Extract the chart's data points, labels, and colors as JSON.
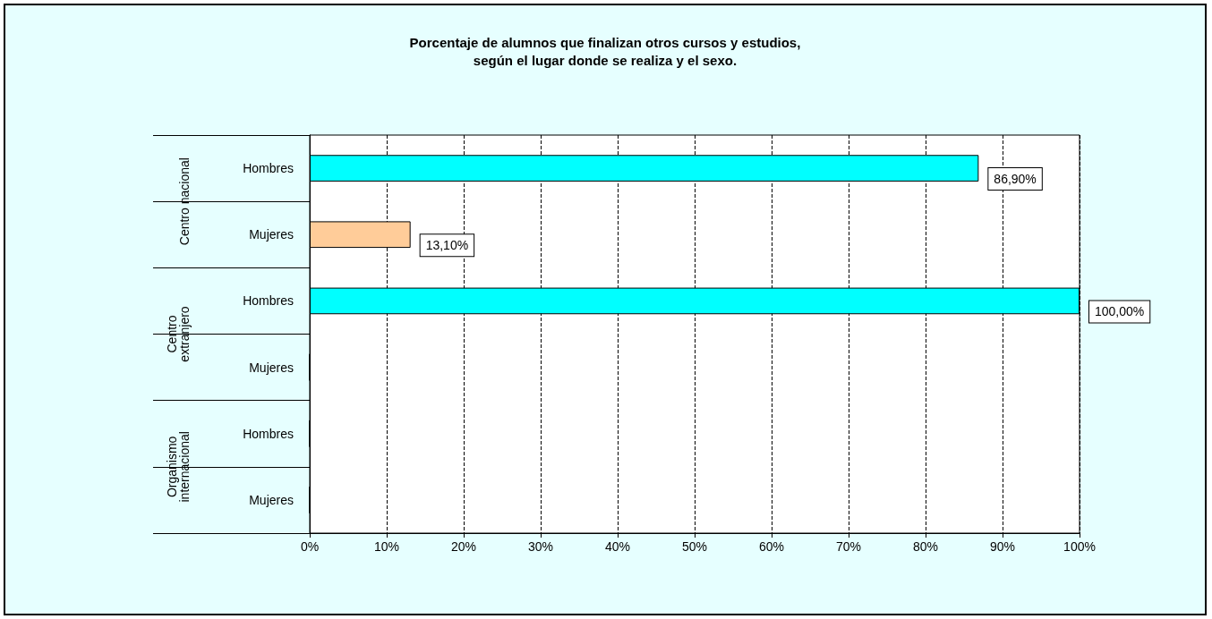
{
  "chart_data": {
    "type": "bar",
    "orientation": "horizontal",
    "title": "Porcentaje de alumnos que finalizan otros cursos y estudios,\nsegún el lugar donde se realiza y el sexo.",
    "categories": [
      "Hombres",
      "Mujeres",
      "Hombres",
      "Mujeres",
      "Hombres",
      "Mujeres"
    ],
    "annotations": [
      "Centro nacional",
      "Centro\nextranjero",
      "Organismo\ninternacional"
    ],
    "values": [
      86.9,
      13.1,
      100,
      0,
      0,
      0
    ],
    "value_labels": [
      "86,90%",
      "13,10%",
      "100,00%",
      null,
      null,
      null
    ],
    "colors": [
      "#00ffff",
      "#ffcc99",
      "#00ffff",
      "#ffcc99",
      "#00ffff",
      "#ffcc99"
    ],
    "xlim": [
      0,
      100
    ],
    "xticks": [
      {
        "value": 0,
        "label": "0%"
      },
      {
        "value": 10,
        "label": "10%"
      },
      {
        "value": 20,
        "label": "20%"
      },
      {
        "value": 30,
        "label": "30%"
      },
      {
        "value": 40,
        "label": "40%"
      },
      {
        "value": 50,
        "label": "50%"
      },
      {
        "value": 60,
        "label": "60%"
      },
      {
        "value": 70,
        "label": "70%"
      },
      {
        "value": 80,
        "label": "80%"
      },
      {
        "value": 90,
        "label": "90%"
      },
      {
        "value": 100,
        "label": "100%"
      }
    ],
    "grid": "x"
  }
}
